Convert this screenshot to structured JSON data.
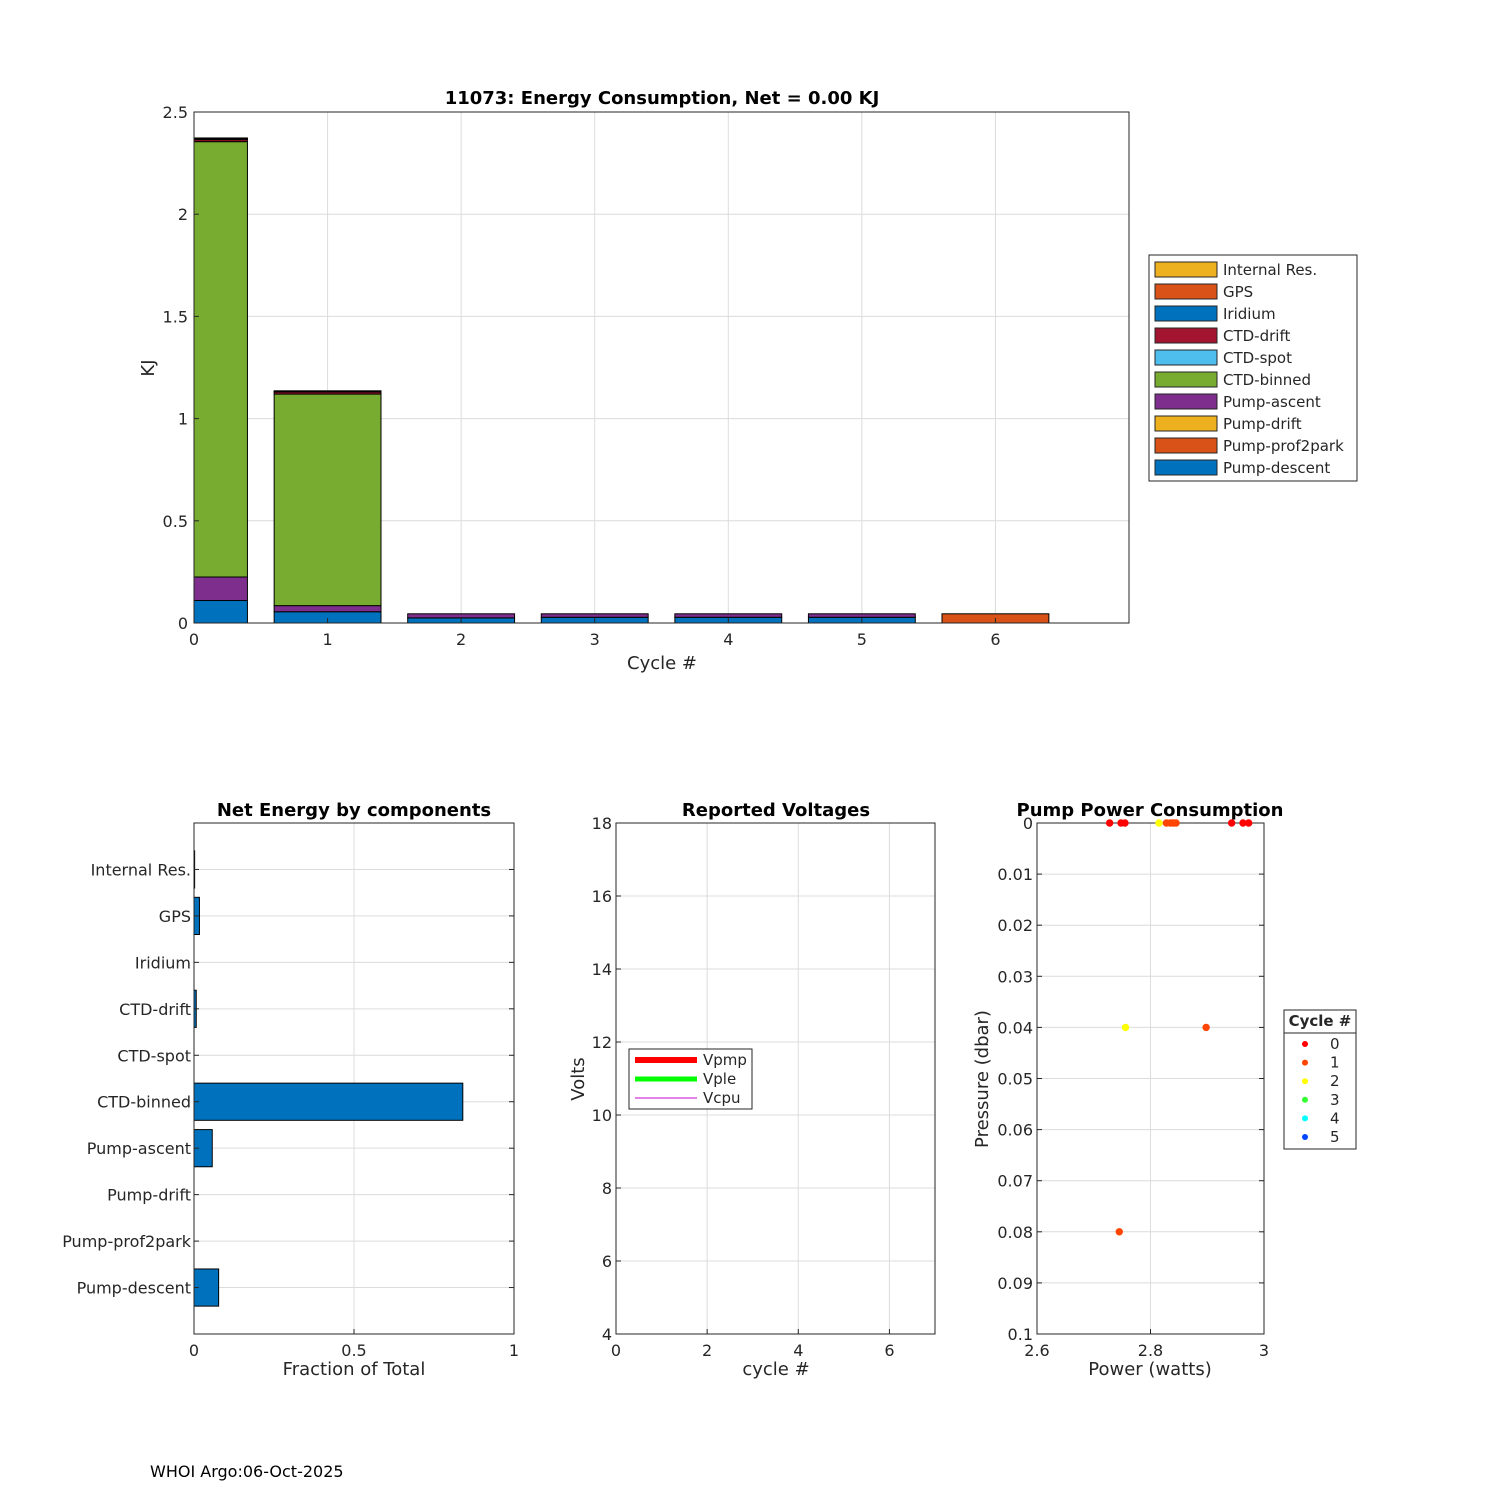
{
  "footer": "WHOI Argo:06-Oct-2025",
  "colors": {
    "Pump-descent": "#0072bd",
    "Pump-prof2park": "#d95319",
    "Pump-drift": "#edb120",
    "Pump-ascent": "#7e2f8e",
    "CTD-binned": "#77ac30",
    "CTD-spot": "#4dbeee",
    "CTD-drift": "#a2142f",
    "Iridium": "#0072bd",
    "GPS": "#d95319",
    "Internal Res.": "#edb120"
  },
  "chart_data": [
    {
      "id": "energy",
      "type": "bar",
      "stacked": true,
      "title": "11073: Energy Consumption,  Net =   0.00 KJ",
      "xlabel": "Cycle #",
      "ylabel": "KJ",
      "xlim": [
        0,
        7
      ],
      "ylim": [
        0,
        2.5
      ],
      "xticks": [
        "0",
        "1",
        "2",
        "3",
        "4",
        "5",
        "6"
      ],
      "yticks": [
        "0",
        "0.5",
        "1",
        "1.5",
        "2",
        "2.5"
      ],
      "categories": [
        0,
        1,
        2,
        3,
        4,
        5,
        6
      ],
      "legend_position": "outside-right",
      "legend": [
        "Internal Res.",
        "GPS",
        "Iridium",
        "CTD-drift",
        "CTD-spot",
        "CTD-binned",
        "Pump-ascent",
        "Pump-drift",
        "Pump-prof2park",
        "Pump-descent"
      ],
      "series": [
        {
          "name": "Pump-descent",
          "values": [
            0.11,
            0.055,
            0.025,
            0.028,
            0.028,
            0.028,
            0
          ]
        },
        {
          "name": "Pump-prof2park",
          "values": [
            0,
            0,
            0,
            0,
            0,
            0,
            0.045
          ]
        },
        {
          "name": "Pump-drift",
          "values": [
            0,
            0,
            0,
            0,
            0,
            0,
            0
          ]
        },
        {
          "name": "Pump-ascent",
          "values": [
            0.115,
            0.03,
            0.02,
            0.017,
            0.017,
            0.017,
            0
          ]
        },
        {
          "name": "CTD-binned",
          "values": [
            2.13,
            1.035,
            0,
            0,
            0,
            0,
            0
          ]
        },
        {
          "name": "CTD-spot",
          "values": [
            0,
            0,
            0,
            0,
            0,
            0,
            0
          ]
        },
        {
          "name": "CTD-drift",
          "values": [
            0.01,
            0.01,
            0,
            0,
            0,
            0,
            0
          ]
        },
        {
          "name": "Iridium",
          "values": [
            0,
            0,
            0,
            0,
            0,
            0,
            0
          ]
        },
        {
          "name": "GPS",
          "values": [
            0.005,
            0.004,
            0,
            0,
            0,
            0,
            0
          ]
        },
        {
          "name": "Internal Res.",
          "values": [
            0.003,
            0.002,
            0,
            0,
            0,
            0,
            0
          ]
        }
      ]
    },
    {
      "id": "components",
      "type": "bar",
      "orientation": "horizontal",
      "title": "Net Energy by components",
      "xlabel": "Fraction of Total",
      "xlim": [
        0,
        1
      ],
      "xticks": [
        "0",
        "0.5",
        "1"
      ],
      "categories": [
        "Internal Res.",
        "GPS",
        "Iridium",
        "CTD-drift",
        "CTD-spot",
        "CTD-binned",
        "Pump-ascent",
        "Pump-drift",
        "Pump-prof2park",
        "Pump-descent"
      ],
      "values": [
        0.002,
        0.017,
        0,
        0.007,
        0,
        0.84,
        0.057,
        0,
        0,
        0.077
      ]
    },
    {
      "id": "voltages",
      "type": "line",
      "title": "Reported Voltages",
      "xlabel": "cycle #",
      "ylabel": "Volts",
      "xlim": [
        0,
        7
      ],
      "ylim": [
        4,
        18
      ],
      "xticks": [
        "0",
        "2",
        "4",
        "6"
      ],
      "yticks": [
        "4",
        "6",
        "8",
        "10",
        "12",
        "14",
        "16",
        "18"
      ],
      "legend_position": "left",
      "series": [
        {
          "name": "Vpmp",
          "color": "#ff0000",
          "values": []
        },
        {
          "name": "Vple",
          "color": "#00ff00",
          "values": []
        },
        {
          "name": "Vcpu",
          "color": "#cc00cc",
          "values": []
        }
      ]
    },
    {
      "id": "pump",
      "type": "scatter",
      "title": "Pump Power Consumption",
      "xlabel": "Power (watts)",
      "ylabel": "Pressure (dbar)",
      "xlim": [
        2.6,
        3
      ],
      "ylim": [
        0,
        0.1
      ],
      "y_reversed": true,
      "xticks": [
        "2.6",
        "2.8",
        "3"
      ],
      "yticks": [
        "0",
        "0.01",
        "0.02",
        "0.03",
        "0.04",
        "0.05",
        "0.06",
        "0.07",
        "0.08",
        "0.09",
        "0.1"
      ],
      "legend_title": "Cycle #",
      "legend_position": "outside-right",
      "series": [
        {
          "name": "0",
          "color": "#ff0000",
          "points": [
            [
              2.728,
              0
            ],
            [
              2.748,
              0
            ],
            [
              2.755,
              0
            ],
            [
              2.943,
              0
            ],
            [
              2.963,
              0
            ],
            [
              2.973,
              0
            ]
          ]
        },
        {
          "name": "1",
          "color": "#ff4500",
          "points": [
            [
              2.828,
              0
            ],
            [
              2.835,
              0
            ],
            [
              2.84,
              0
            ],
            [
              2.845,
              0
            ],
            [
              2.898,
              0.04
            ],
            [
              2.745,
              0.08
            ]
          ]
        },
        {
          "name": "2",
          "color": "#ffff00",
          "points": [
            [
              2.815,
              0
            ],
            [
              2.756,
              0.04
            ]
          ]
        },
        {
          "name": "3",
          "color": "#33ff33",
          "points": []
        },
        {
          "name": "4",
          "color": "#00ffff",
          "points": []
        },
        {
          "name": "5",
          "color": "#0044ff",
          "points": []
        }
      ]
    }
  ]
}
